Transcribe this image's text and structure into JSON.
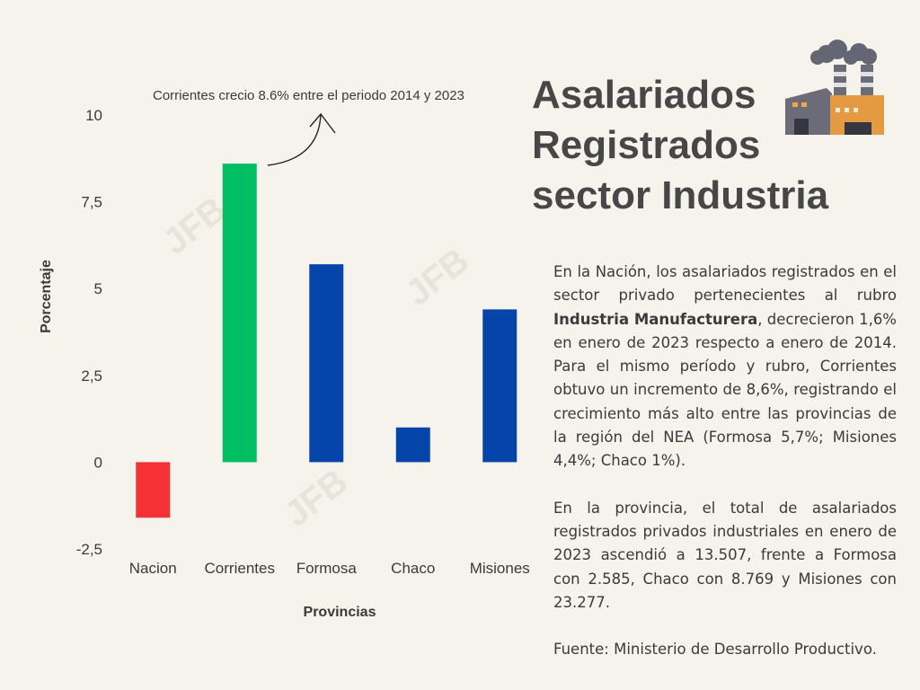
{
  "colors": {
    "background": "#f6f3ec",
    "nacion": "#f53133",
    "corrientes": "#00bf63",
    "provinces": "#0544a9",
    "text": "#3a3a3a"
  },
  "title_lines": [
    "Asalariados",
    "Registrados",
    "sector Industria"
  ],
  "icon": "factory-icon",
  "watermark": "JFB",
  "paragraph1": {
    "part1": "En la Nación, los asalariados registrados en el sector privado pertenecientes al rubro ",
    "bold": "Industria Manufacturera",
    "part2": ", decrecieron 1,6% en enero de 2023 respecto a enero de 2014. Para el mismo período y rubro, Corrientes obtuvo un incremento de 8,6%, registrando el crecimiento más alto entre las provincias de la región del NEA (Formosa 5,7%; Misiones 4,4%; Chaco 1%)."
  },
  "paragraph2": "En la provincia, el total de asalariados registrados privados industriales en enero de 2023 ascendió a 13.507, frente a Formosa con 2.585, Chaco con 8.769 y Misiones con 23.277.",
  "source": "Fuente: Ministerio de Desarrollo Productivo.",
  "chart_data": {
    "type": "bar",
    "categories": [
      "Nacion",
      "Corrientes",
      "Formosa",
      "Chaco",
      "Misiones"
    ],
    "values": [
      -1.6,
      8.6,
      5.7,
      1.0,
      4.4
    ],
    "bar_colors": [
      "#f53133",
      "#00bf63",
      "#0544a9",
      "#0544a9",
      "#0544a9"
    ],
    "title": "",
    "xlabel": "Provincias",
    "ylabel": "Porcentaje",
    "ylim": [
      -2.5,
      10
    ],
    "yticks": [
      10,
      7.5,
      5,
      2.5,
      0,
      -2.5
    ],
    "ytick_labels": [
      "10",
      "7,5",
      "5",
      "2,5",
      "0",
      "-2,5"
    ],
    "grid": false,
    "annotation": "Corrientes crecio 8.6% entre el periodo 2014 y 2023"
  }
}
